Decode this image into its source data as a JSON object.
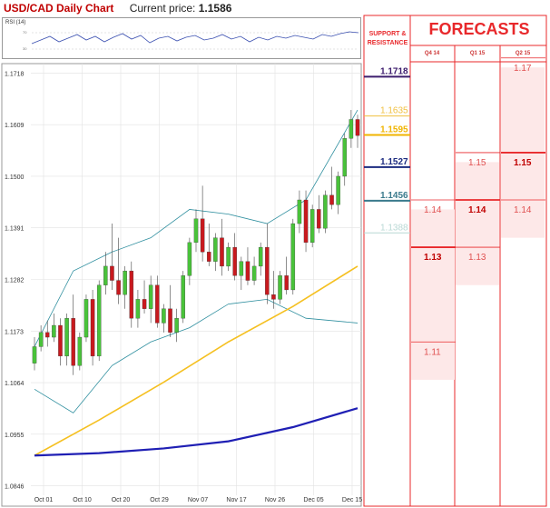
{
  "header": {
    "chart_title": "USD/CAD Daily Chart",
    "current_price_label": "Current price:",
    "current_price_value": "1.1586"
  },
  "rsi": {
    "label": "RSI (14)",
    "upper_level": "70",
    "lower_level": "30"
  },
  "sr_panel": {
    "title_line1": "SUPPORT &",
    "title_line2": "RESISTANCE",
    "levels": [
      {
        "value": "1.1718",
        "color": "#3d1d6e",
        "bold": true
      },
      {
        "value": "1.1635",
        "color": "#f0c040",
        "bold": false
      },
      {
        "value": "1.1595",
        "color": "#f0b400",
        "bold": true
      },
      {
        "value": "1.1527",
        "color": "#1c2b80",
        "bold": true
      },
      {
        "value": "1.1456",
        "color": "#3a7a8c",
        "bold": true
      },
      {
        "value": "1.1388",
        "color": "#b8d8d4",
        "bold": false
      }
    ]
  },
  "forecasts": {
    "title": "FORECASTS",
    "columns": [
      "Q4 14",
      "Q1 15",
      "Q2 15"
    ],
    "q4_14": {
      "values": [
        "1.14",
        "1.13",
        "1.11"
      ],
      "bold": "1.13"
    },
    "q1_15": {
      "values": [
        "1.15",
        "1.14",
        "1.13"
      ],
      "bold": "1.14"
    },
    "q2_15": {
      "values": [
        "1.17",
        "1.15",
        "1.14"
      ],
      "bold": "1.15"
    }
  },
  "chart_data": {
    "type": "candlestick",
    "y_ticks": [
      "1.1718",
      "1.1609",
      "1.1500",
      "1.1391",
      "1.1282",
      "1.1173",
      "1.1064",
      "1.0955",
      "1.0846"
    ],
    "ylim": [
      1.0826,
      1.1738
    ],
    "x_labels": [
      "Oct 01",
      "Oct 10",
      "Oct 20",
      "Oct 29",
      "Nov 07",
      "Nov 17",
      "Nov 26",
      "Dec 05",
      "Dec 15"
    ],
    "grid": true,
    "colors": {
      "up": "#49c23a",
      "down": "#c8191e",
      "ma_short": "#f5c021",
      "ma_long": "#1f1fb4",
      "band": "#2f8f9f"
    },
    "candles": [
      [
        1.1105,
        1.116,
        1.109,
        1.114
      ],
      [
        1.114,
        1.1185,
        1.113,
        1.117
      ],
      [
        1.117,
        1.1195,
        1.114,
        1.116
      ],
      [
        1.116,
        1.121,
        1.115,
        1.1185
      ],
      [
        1.1185,
        1.12,
        1.11,
        1.112
      ],
      [
        1.112,
        1.121,
        1.11,
        1.12
      ],
      [
        1.12,
        1.125,
        1.108,
        1.11
      ],
      [
        1.11,
        1.117,
        1.109,
        1.116
      ],
      [
        1.116,
        1.125,
        1.115,
        1.124
      ],
      [
        1.124,
        1.126,
        1.11,
        1.112
      ],
      [
        1.112,
        1.128,
        1.111,
        1.127
      ],
      [
        1.127,
        1.134,
        1.125,
        1.131
      ],
      [
        1.131,
        1.14,
        1.126,
        1.128
      ],
      [
        1.128,
        1.137,
        1.123,
        1.125
      ],
      [
        1.125,
        1.131,
        1.122,
        1.13
      ],
      [
        1.13,
        1.132,
        1.118,
        1.12
      ],
      [
        1.12,
        1.126,
        1.118,
        1.124
      ],
      [
        1.124,
        1.128,
        1.121,
        1.122
      ],
      [
        1.122,
        1.129,
        1.119,
        1.127
      ],
      [
        1.127,
        1.129,
        1.118,
        1.119
      ],
      [
        1.119,
        1.123,
        1.117,
        1.122
      ],
      [
        1.122,
        1.127,
        1.116,
        1.117
      ],
      [
        1.117,
        1.122,
        1.115,
        1.12
      ],
      [
        1.12,
        1.13,
        1.119,
        1.129
      ],
      [
        1.129,
        1.137,
        1.127,
        1.136
      ],
      [
        1.136,
        1.143,
        1.134,
        1.141
      ],
      [
        1.141,
        1.148,
        1.132,
        1.134
      ],
      [
        1.134,
        1.14,
        1.131,
        1.132
      ],
      [
        1.132,
        1.138,
        1.13,
        1.137
      ],
      [
        1.137,
        1.141,
        1.129,
        1.131
      ],
      [
        1.131,
        1.136,
        1.13,
        1.135
      ],
      [
        1.135,
        1.138,
        1.128,
        1.129
      ],
      [
        1.129,
        1.133,
        1.126,
        1.132
      ],
      [
        1.132,
        1.135,
        1.127,
        1.128
      ],
      [
        1.128,
        1.133,
        1.127,
        1.131
      ],
      [
        1.131,
        1.136,
        1.129,
        1.135
      ],
      [
        1.135,
        1.14,
        1.123,
        1.125
      ],
      [
        1.125,
        1.13,
        1.122,
        1.124
      ],
      [
        1.124,
        1.13,
        1.123,
        1.129
      ],
      [
        1.129,
        1.133,
        1.125,
        1.126
      ],
      [
        1.126,
        1.141,
        1.125,
        1.14
      ],
      [
        1.14,
        1.147,
        1.138,
        1.145
      ],
      [
        1.145,
        1.147,
        1.134,
        1.136
      ],
      [
        1.136,
        1.144,
        1.135,
        1.143
      ],
      [
        1.143,
        1.146,
        1.138,
        1.139
      ],
      [
        1.139,
        1.147,
        1.138,
        1.146
      ],
      [
        1.146,
        1.152,
        1.143,
        1.144
      ],
      [
        1.144,
        1.151,
        1.142,
        1.15
      ],
      [
        1.15,
        1.159,
        1.148,
        1.158
      ],
      [
        1.158,
        1.164,
        1.156,
        1.162
      ],
      [
        1.162,
        1.163,
        1.156,
        1.1586
      ]
    ],
    "ma_short": [
      [
        0,
        1.091
      ],
      [
        10,
        1.0985
      ],
      [
        20,
        1.1065
      ],
      [
        30,
        1.115
      ],
      [
        40,
        1.1225
      ],
      [
        50,
        1.131
      ]
    ],
    "ma_long": [
      [
        0,
        1.091
      ],
      [
        10,
        1.0915
      ],
      [
        20,
        1.0925
      ],
      [
        30,
        1.094
      ],
      [
        40,
        1.097
      ],
      [
        50,
        1.101
      ]
    ],
    "band_upper": [
      [
        0,
        1.114
      ],
      [
        6,
        1.13
      ],
      [
        12,
        1.134
      ],
      [
        18,
        1.137
      ],
      [
        24,
        1.143
      ],
      [
        30,
        1.142
      ],
      [
        36,
        1.14
      ],
      [
        42,
        1.145
      ],
      [
        50,
        1.164
      ]
    ],
    "band_lower": [
      [
        0,
        1.105
      ],
      [
        6,
        1.1
      ],
      [
        12,
        1.11
      ],
      [
        18,
        1.115
      ],
      [
        24,
        1.118
      ],
      [
        30,
        1.123
      ],
      [
        36,
        1.124
      ],
      [
        42,
        1.12
      ],
      [
        50,
        1.119
      ]
    ]
  }
}
